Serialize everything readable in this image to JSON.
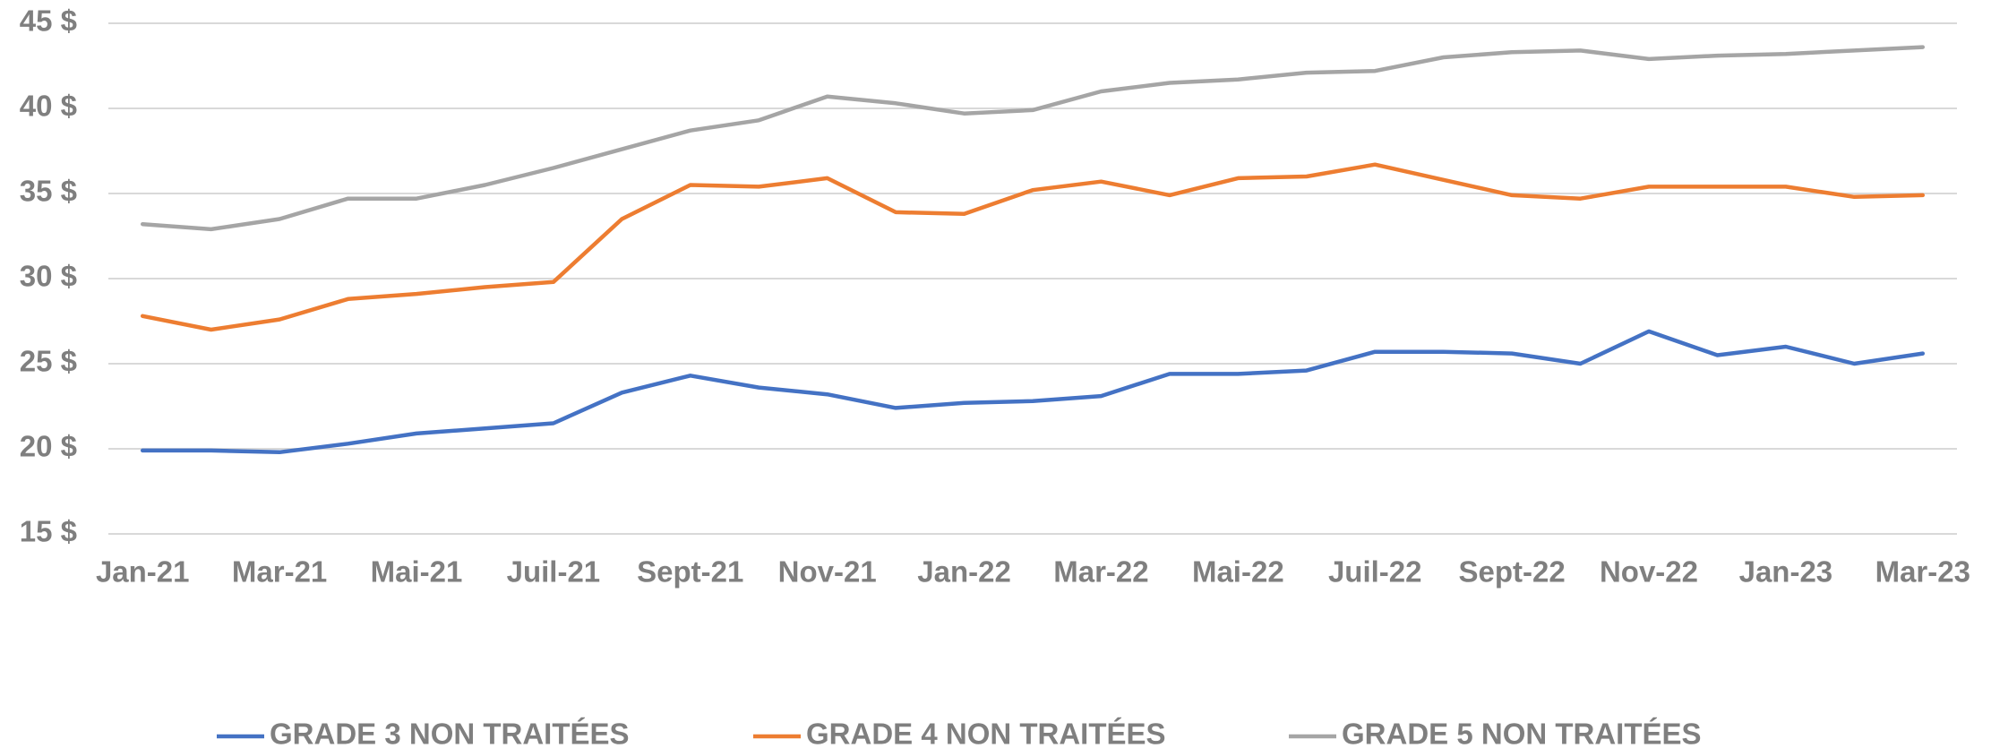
{
  "chart_data": {
    "type": "line",
    "categories": [
      "Jan-21",
      null,
      "Mar-21",
      null,
      "Mai-21",
      null,
      "Juil-21",
      null,
      "Sept-21",
      null,
      "Nov-21",
      null,
      "Jan-22",
      null,
      "Mar-22",
      null,
      "Mai-22",
      null,
      "Juil-22",
      null,
      "Sept-22",
      null,
      "Nov-22",
      null,
      "Jan-23",
      null,
      "Mar-23"
    ],
    "series": [
      {
        "name": "GRADE 3 NON TRAITÉES",
        "color": "#4472c4",
        "values": [
          19.9,
          19.9,
          19.8,
          20.3,
          20.9,
          21.2,
          21.5,
          23.3,
          24.3,
          23.6,
          23.2,
          22.4,
          22.7,
          22.8,
          23.1,
          24.4,
          24.4,
          24.6,
          25.7,
          25.7,
          25.6,
          25.0,
          26.9,
          25.5,
          26.0,
          25.0,
          25.6
        ]
      },
      {
        "name": "GRADE 4 NON TRAITÉES",
        "color": "#ed7d31",
        "values": [
          27.8,
          27.0,
          27.6,
          28.8,
          29.1,
          29.5,
          29.8,
          33.5,
          35.5,
          35.4,
          35.9,
          33.9,
          33.8,
          35.2,
          35.7,
          34.9,
          35.9,
          36.0,
          36.7,
          35.8,
          34.9,
          34.7,
          35.4,
          35.4,
          35.4,
          34.8,
          34.9
        ]
      },
      {
        "name": "GRADE 5 NON TRAITÉES",
        "color": "#a5a5a5",
        "values": [
          33.2,
          32.9,
          33.5,
          34.7,
          34.7,
          35.5,
          36.5,
          37.6,
          38.7,
          39.3,
          40.7,
          40.3,
          39.7,
          39.9,
          41.0,
          41.5,
          41.7,
          42.1,
          42.2,
          43.0,
          43.3,
          43.4,
          42.9,
          43.1,
          43.2,
          43.4,
          43.6
        ]
      }
    ],
    "ylim": [
      15,
      45
    ],
    "yticks": [
      {
        "value": 15,
        "label": "15 $"
      },
      {
        "value": 20,
        "label": "20 $"
      },
      {
        "value": 25,
        "label": "25 $"
      },
      {
        "value": 30,
        "label": "30 $"
      },
      {
        "value": 35,
        "label": "35 $"
      },
      {
        "value": 40,
        "label": "40 $"
      },
      {
        "value": 45,
        "label": "45 $"
      }
    ],
    "grid": true,
    "legend": "bottom"
  }
}
